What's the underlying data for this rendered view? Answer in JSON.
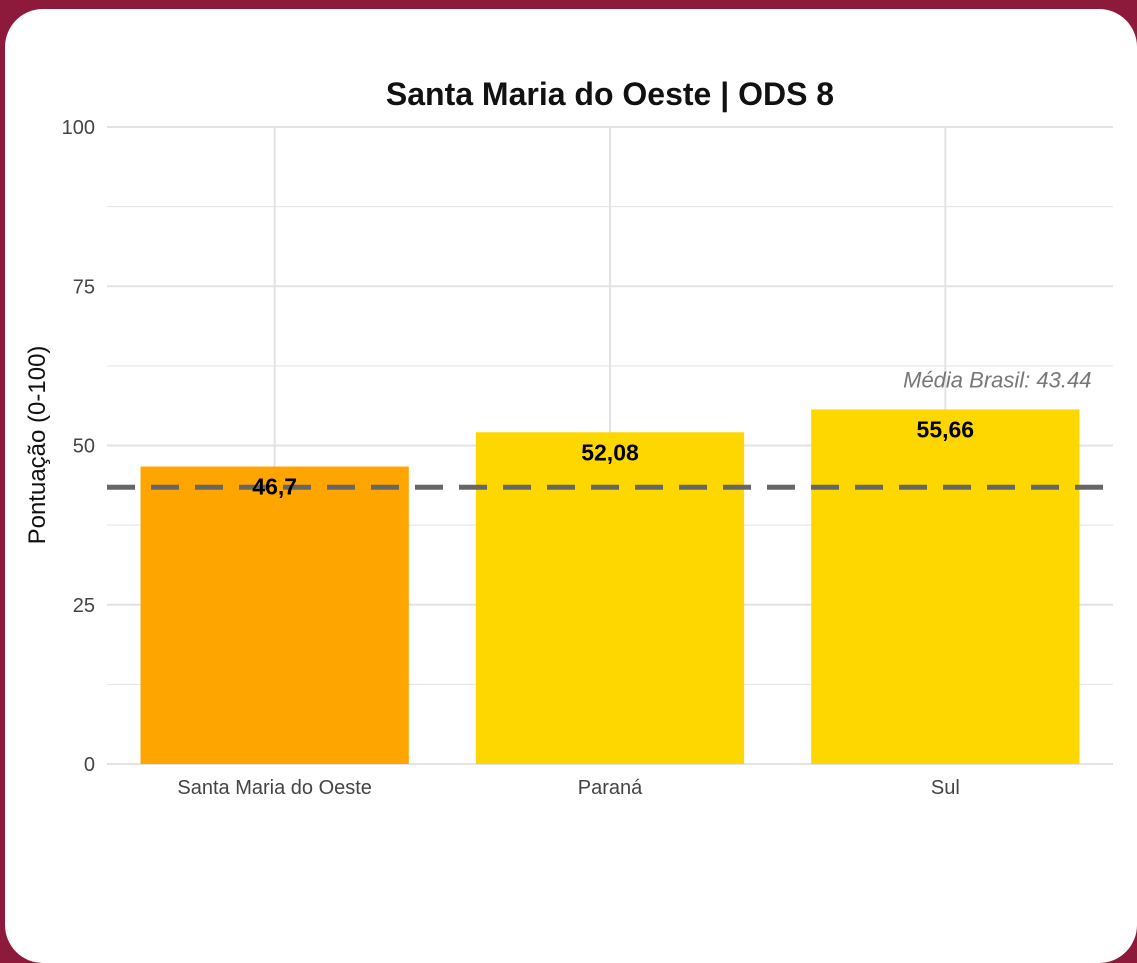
{
  "chart_data": {
    "type": "bar",
    "title": "Santa Maria do Oeste | ODS 8",
    "xlabel": "",
    "ylabel": "Pontuação (0-100)",
    "ylim": [
      0,
      100
    ],
    "yticks": [
      0,
      25,
      50,
      75,
      100
    ],
    "grid": true,
    "categories": [
      "Santa Maria do Oeste",
      "Paraná",
      "Sul"
    ],
    "values": [
      46.7,
      52.08,
      55.66
    ],
    "value_labels": [
      "46,7",
      "52,08",
      "55,66"
    ],
    "bar_colors": [
      "#FFA500",
      "#FFD700",
      "#FFD700"
    ],
    "reference_line": {
      "value": 43.44,
      "label": "Média Brasil: 43.44",
      "color": "#666666",
      "style": "dashed"
    }
  },
  "colors": {
    "frame": "#8e1a3b",
    "background": "#ffffff",
    "grid": "#e3e3e3"
  }
}
